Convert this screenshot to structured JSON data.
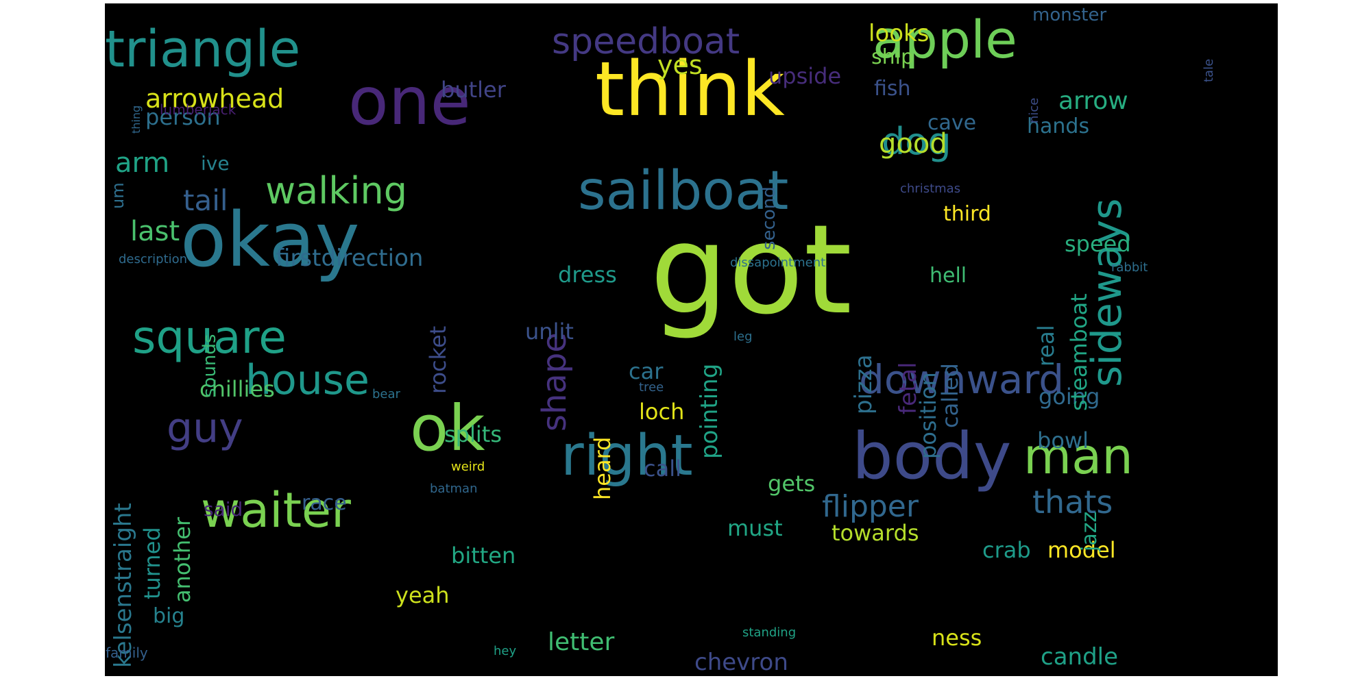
{
  "words": [
    {
      "text": "got",
      "size": 180,
      "color": "#a0da39"
    },
    {
      "text": "think",
      "size": 110,
      "color": "#fde725"
    },
    {
      "text": "okay",
      "size": 110,
      "color": "#2a788e"
    },
    {
      "text": "one",
      "size": 96,
      "color": "#482878"
    },
    {
      "text": "body",
      "size": 94,
      "color": "#3e4a89"
    },
    {
      "text": "ok",
      "size": 92,
      "color": "#7ad151"
    },
    {
      "text": "right",
      "size": 82,
      "color": "#2a788e"
    },
    {
      "text": "sailboat",
      "size": 78,
      "color": "#2c728e"
    },
    {
      "text": "apple",
      "size": 76,
      "color": "#6ece58"
    },
    {
      "text": "triangle",
      "size": 74,
      "color": "#21918c"
    },
    {
      "text": "man",
      "size": 72,
      "color": "#7ad151"
    },
    {
      "text": "waiter",
      "size": 70,
      "color": "#7ad151"
    },
    {
      "text": "square",
      "size": 66,
      "color": "#1fa187"
    },
    {
      "text": "guy",
      "size": 60,
      "color": "#433e85"
    },
    {
      "text": "house",
      "size": 60,
      "color": "#1f988b"
    },
    {
      "text": "sideways",
      "size": 60,
      "color": "#1f988b"
    },
    {
      "text": "downward",
      "size": 58,
      "color": "#3b528b"
    },
    {
      "text": "walking",
      "size": 54,
      "color": "#5ec962"
    },
    {
      "text": "speedboat",
      "size": 52,
      "color": "#443983"
    },
    {
      "text": "dog",
      "size": 54,
      "color": "#218f8d"
    },
    {
      "text": "shape",
      "size": 48,
      "color": "#46327e"
    },
    {
      "text": "thats",
      "size": 46,
      "color": "#31688e"
    },
    {
      "text": "flipper",
      "size": 44,
      "color": "#31688e"
    },
    {
      "text": "arrowhead",
      "size": 38,
      "color": "#d8e219"
    },
    {
      "text": "good",
      "size": 40,
      "color": "#b5de2b"
    },
    {
      "text": "tail",
      "size": 42,
      "color": "#355f8d"
    },
    {
      "text": "last",
      "size": 40,
      "color": "#4ac16d"
    },
    {
      "text": "arm",
      "size": 40,
      "color": "#20a386"
    },
    {
      "text": "yes",
      "size": 38,
      "color": "#c2df23"
    },
    {
      "text": "arrow",
      "size": 36,
      "color": "#27ad81"
    },
    {
      "text": "letter",
      "size": 36,
      "color": "#40bd72"
    },
    {
      "text": "chevron",
      "size": 34,
      "color": "#3e4a89"
    },
    {
      "text": "candle",
      "size": 34,
      "color": "#1fa187"
    },
    {
      "text": "looks",
      "size": 34,
      "color": "#cde11d"
    },
    {
      "text": "butler",
      "size": 32,
      "color": "#414487"
    },
    {
      "text": "person",
      "size": 32,
      "color": "#2d708e"
    },
    {
      "text": "upside",
      "size": 32,
      "color": "#472d7b"
    },
    {
      "text": "firstdirection",
      "size": 34,
      "color": "#2f6c8e"
    },
    {
      "text": "speed",
      "size": 32,
      "color": "#29af7f"
    },
    {
      "text": "dress",
      "size": 32,
      "color": "#1f9a8a"
    },
    {
      "text": "unlit",
      "size": 32,
      "color": "#3b528b"
    },
    {
      "text": "chillies",
      "size": 32,
      "color": "#52c569"
    },
    {
      "text": "splits",
      "size": 32,
      "color": "#35b779"
    },
    {
      "text": "gets",
      "size": 32,
      "color": "#52c569"
    },
    {
      "text": "going",
      "size": 32,
      "color": "#306a8e"
    },
    {
      "text": "bowl",
      "size": 32,
      "color": "#2e6f8e"
    },
    {
      "text": "model",
      "size": 32,
      "color": "#fde725"
    },
    {
      "text": "crab",
      "size": 32,
      "color": "#1e9b8a"
    },
    {
      "text": "towards",
      "size": 32,
      "color": "#b5de2b"
    },
    {
      "text": "must",
      "size": 32,
      "color": "#21a685"
    },
    {
      "text": "bitten",
      "size": 32,
      "color": "#22a884"
    },
    {
      "text": "yeah",
      "size": 32,
      "color": "#cde11d"
    },
    {
      "text": "big",
      "size": 30,
      "color": "#26828e"
    },
    {
      "text": "race",
      "size": 30,
      "color": "#355f8d"
    },
    {
      "text": "call",
      "size": 32,
      "color": "#3b528b"
    },
    {
      "text": "car",
      "size": 32,
      "color": "#2c728e"
    },
    {
      "text": "loch",
      "size": 32,
      "color": "#e2e418"
    },
    {
      "text": "ness",
      "size": 32,
      "color": "#d8e219"
    },
    {
      "text": "hands",
      "size": 30,
      "color": "#2c728e"
    },
    {
      "text": "cave",
      "size": 30,
      "color": "#31688e"
    },
    {
      "text": "third",
      "size": 30,
      "color": "#fde725"
    },
    {
      "text": "hell",
      "size": 30,
      "color": "#3fbc73"
    },
    {
      "text": "fish",
      "size": 30,
      "color": "#3b528b"
    },
    {
      "text": "ship",
      "size": 30,
      "color": "#7ad151"
    },
    {
      "text": "ive",
      "size": 28,
      "color": "#26828e"
    },
    {
      "text": "said",
      "size": 28,
      "color": "#482878"
    },
    {
      "text": "monster",
      "size": 26,
      "color": "#33638d"
    },
    {
      "text": "kelsenstraight",
      "size": 34,
      "color": "#2a788e"
    },
    {
      "text": "turned",
      "size": 32,
      "color": "#21918c"
    },
    {
      "text": "another",
      "size": 32,
      "color": "#44bf70"
    },
    {
      "text": "sounds",
      "size": 26,
      "color": "#3aba76"
    },
    {
      "text": "rocket",
      "size": 32,
      "color": "#3d4d8a"
    },
    {
      "text": "heard",
      "size": 32,
      "color": "#fde725"
    },
    {
      "text": "pointing",
      "size": 34,
      "color": "#20a386"
    },
    {
      "text": "pizza",
      "size": 34,
      "color": "#2d708e"
    },
    {
      "text": "fetal",
      "size": 34,
      "color": "#482878"
    },
    {
      "text": "position",
      "size": 32,
      "color": "#2e6e8e"
    },
    {
      "text": "called",
      "size": 32,
      "color": "#33638d"
    },
    {
      "text": "real",
      "size": 32,
      "color": "#287c8e"
    },
    {
      "text": "steamboat",
      "size": 32,
      "color": "#21a685"
    },
    {
      "text": "jazz",
      "size": 30,
      "color": "#22a785"
    },
    {
      "text": "second",
      "size": 26,
      "color": "#34618d"
    },
    {
      "text": "um",
      "size": 24,
      "color": "#2e6f8e"
    },
    {
      "text": "lumberjack",
      "size": 20,
      "color": "#481f70"
    },
    {
      "text": "description",
      "size": 18,
      "color": "#2f6b8e"
    },
    {
      "text": "family",
      "size": 20,
      "color": "#34608d"
    },
    {
      "text": "thing",
      "size": 16,
      "color": "#31688e"
    },
    {
      "text": "christmas",
      "size": 18,
      "color": "#3e4a89"
    },
    {
      "text": "dissapointment",
      "size": 18,
      "color": "#2c728e"
    },
    {
      "text": "rabbit",
      "size": 18,
      "color": "#2e6f8e"
    },
    {
      "text": "leg",
      "size": 18,
      "color": "#2d708e"
    },
    {
      "text": "tree",
      "size": 18,
      "color": "#33638d"
    },
    {
      "text": "bear",
      "size": 18,
      "color": "#2c728e"
    },
    {
      "text": "weird",
      "size": 18,
      "color": "#e5e419"
    },
    {
      "text": "batman",
      "size": 18,
      "color": "#30678d"
    },
    {
      "text": "standing",
      "size": 18,
      "color": "#20a386"
    },
    {
      "text": "hey",
      "size": 18,
      "color": "#1fa187"
    },
    {
      "text": "nice",
      "size": 18,
      "color": "#3d4e8a"
    },
    {
      "text": "tale",
      "size": 18,
      "color": "#3b528b"
    }
  ]
}
